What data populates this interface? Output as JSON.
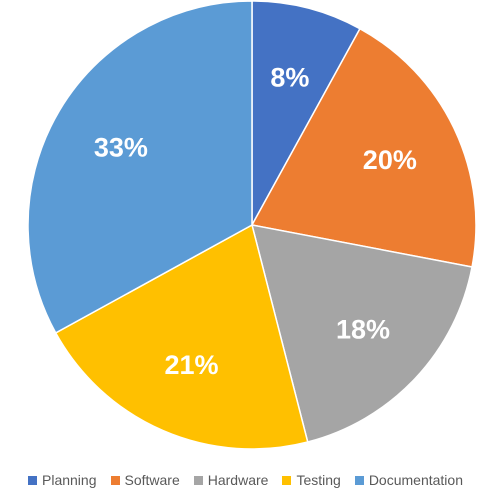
{
  "chart_data": {
    "type": "pie",
    "title": "",
    "categories": [
      "Planning",
      "Software",
      "Hardware",
      "Testing",
      "Documentation"
    ],
    "values": [
      8,
      20,
      18,
      21,
      33
    ],
    "labels": [
      "8%",
      "20%",
      "18%",
      "21%",
      "33%"
    ],
    "colors": [
      "#4472C4",
      "#ED7D31",
      "#A5A5A5",
      "#FFC000",
      "#5B9BD5"
    ],
    "legend_position": "bottom",
    "start_angle_deg": 0,
    "direction": "clockwise"
  }
}
